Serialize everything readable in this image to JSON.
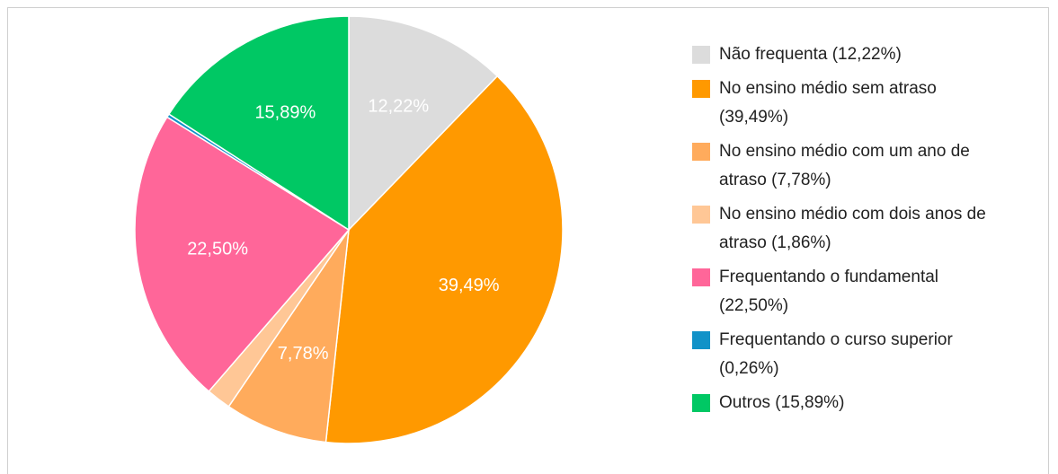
{
  "chart_data": {
    "type": "pie",
    "categories": [
      "Não frequenta (12,22%)",
      "No ensino médio sem atraso (39,49%)",
      "No ensino médio com um ano de atraso (7,78%)",
      "No ensino médio com dois anos de atraso (1,86%)",
      "Frequentando o fundamental (22,50%)",
      "Frequentando o curso superior (0,26%)",
      "Outros (15,89%)"
    ],
    "values": [
      12.22,
      39.49,
      7.78,
      1.86,
      22.5,
      0.26,
      15.89
    ],
    "value_labels": [
      "12,22%",
      "39,49%",
      "7,78%",
      null,
      "22,50%",
      null,
      "15,89%"
    ],
    "colors": [
      "#dcdcdc",
      "#ff9900",
      "#ffab5c",
      "#ffc796",
      "#ff6699",
      "#1192c8",
      "#00c864"
    ],
    "legend": "right"
  }
}
